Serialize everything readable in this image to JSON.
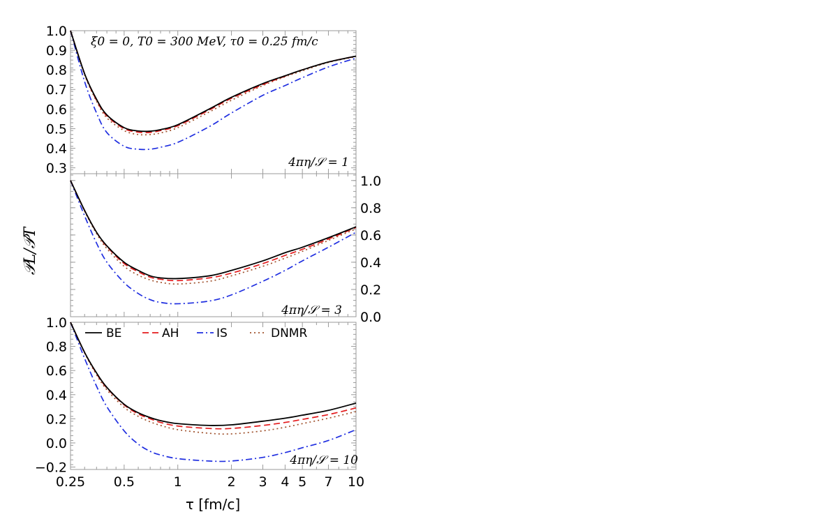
{
  "chart_data": {
    "type": "line",
    "xlabel": "τ [fm/c]",
    "ylabel": "𝒫L/𝒫T",
    "xscale": "log",
    "xlim": [
      0.25,
      10
    ],
    "x_ticks": [
      0.25,
      0.5,
      1,
      2,
      3,
      4,
      5,
      7,
      10
    ],
    "x_tick_labels": [
      "0.25",
      "0.5",
      "1",
      "2",
      "3",
      "4",
      "5",
      "7",
      "10"
    ],
    "title_annotation": "ξ0 = 0, T0 = 300 MeV, τ0 = 0.25 fm/c",
    "legend": {
      "position": "top-left of bottom panel",
      "entries": [
        {
          "name": "BE",
          "color": "#000000",
          "dash": "solid"
        },
        {
          "name": "AH",
          "color": "#e41a1c",
          "dash": "dashed"
        },
        {
          "name": "IS",
          "color": "#1f2ee0",
          "dash": "dash-dot"
        },
        {
          "name": "DNMR",
          "color": "#a0522d",
          "dash": "dotted"
        }
      ]
    },
    "panels": [
      {
        "annotation": "4πη/𝒮 = 1",
        "ylim": [
          0.27,
          1.0
        ],
        "y_ticks": [
          0.3,
          0.4,
          0.5,
          0.6,
          0.7,
          0.8,
          0.9,
          1.0
        ],
        "y_tick_labels": [
          "0.3",
          "0.4",
          "0.5",
          "0.6",
          "0.7",
          "0.8",
          "0.9",
          "1.0"
        ],
        "y_axis_side": "left",
        "series": [
          {
            "name": "BE",
            "x": [
              0.25,
              0.3,
              0.35,
              0.4,
              0.5,
              0.6,
              0.7,
              0.8,
              1,
              1.5,
              2,
              3,
              4,
              5,
              7,
              10
            ],
            "values": [
              1.0,
              0.78,
              0.65,
              0.57,
              0.505,
              0.488,
              0.487,
              0.495,
              0.52,
              0.6,
              0.66,
              0.73,
              0.77,
              0.8,
              0.84,
              0.87
            ]
          },
          {
            "name": "AH",
            "x": [
              0.25,
              0.3,
              0.35,
              0.4,
              0.5,
              0.6,
              0.7,
              0.8,
              1,
              1.5,
              2,
              3,
              4,
              5,
              7,
              10
            ],
            "values": [
              1.0,
              0.78,
              0.645,
              0.565,
              0.5,
              0.482,
              0.481,
              0.49,
              0.515,
              0.595,
              0.655,
              0.725,
              0.768,
              0.8,
              0.84,
              0.87
            ]
          },
          {
            "name": "IS",
            "x": [
              0.25,
              0.3,
              0.35,
              0.4,
              0.5,
              0.6,
              0.7,
              0.8,
              1,
              1.5,
              2,
              3,
              4,
              5,
              7,
              10
            ],
            "values": [
              1.0,
              0.74,
              0.58,
              0.48,
              0.41,
              0.395,
              0.395,
              0.405,
              0.43,
              0.51,
              0.58,
              0.67,
              0.72,
              0.76,
              0.815,
              0.86
            ]
          },
          {
            "name": "DNMR",
            "x": [
              0.25,
              0.3,
              0.35,
              0.4,
              0.5,
              0.6,
              0.7,
              0.8,
              1,
              1.5,
              2,
              3,
              4,
              5,
              7,
              10
            ],
            "values": [
              1.0,
              0.775,
              0.64,
              0.555,
              0.49,
              0.47,
              0.47,
              0.478,
              0.505,
              0.585,
              0.645,
              0.72,
              0.765,
              0.795,
              0.838,
              0.868
            ]
          }
        ]
      },
      {
        "annotation": "4πη/𝒮 = 3",
        "ylim": [
          0.0,
          1.05
        ],
        "y_ticks": [
          0.0,
          0.2,
          0.4,
          0.6,
          0.8,
          1.0
        ],
        "y_tick_labels": [
          "0.0",
          "0.2",
          "0.4",
          "0.6",
          "0.8",
          "1.0"
        ],
        "y_axis_side": "right",
        "series": [
          {
            "name": "BE",
            "x": [
              0.25,
              0.3,
              0.35,
              0.4,
              0.5,
              0.6,
              0.7,
              0.8,
              1,
              1.5,
              2,
              3,
              4,
              5,
              7,
              10
            ],
            "values": [
              1.0,
              0.78,
              0.62,
              0.52,
              0.4,
              0.34,
              0.3,
              0.285,
              0.28,
              0.3,
              0.34,
              0.41,
              0.47,
              0.51,
              0.58,
              0.66
            ]
          },
          {
            "name": "AH",
            "x": [
              0.25,
              0.3,
              0.35,
              0.4,
              0.5,
              0.6,
              0.7,
              0.8,
              1,
              1.5,
              2,
              3,
              4,
              5,
              7,
              10
            ],
            "values": [
              1.0,
              0.78,
              0.62,
              0.515,
              0.39,
              0.33,
              0.29,
              0.275,
              0.265,
              0.285,
              0.32,
              0.39,
              0.45,
              0.495,
              0.57,
              0.655
            ]
          },
          {
            "name": "IS",
            "x": [
              0.25,
              0.3,
              0.35,
              0.4,
              0.5,
              0.6,
              0.7,
              0.8,
              1,
              1.5,
              2,
              3,
              4,
              5,
              7,
              10
            ],
            "values": [
              1.0,
              0.74,
              0.54,
              0.4,
              0.25,
              0.17,
              0.125,
              0.105,
              0.095,
              0.115,
              0.16,
              0.26,
              0.34,
              0.41,
              0.51,
              0.62
            ]
          },
          {
            "name": "DNMR",
            "x": [
              0.25,
              0.3,
              0.35,
              0.4,
              0.5,
              0.6,
              0.7,
              0.8,
              1,
              1.5,
              2,
              3,
              4,
              5,
              7,
              10
            ],
            "values": [
              1.0,
              0.775,
              0.61,
              0.5,
              0.37,
              0.305,
              0.27,
              0.252,
              0.24,
              0.26,
              0.3,
              0.37,
              0.43,
              0.48,
              0.56,
              0.645
            ]
          }
        ]
      },
      {
        "annotation": "4πη/𝒮 = 10",
        "ylim": [
          -0.22,
          1.0
        ],
        "y_ticks": [
          -0.2,
          0.0,
          0.2,
          0.4,
          0.6,
          0.8,
          1.0
        ],
        "y_tick_labels": [
          "−0.2",
          "0.0",
          "0.2",
          "0.4",
          "0.6",
          "0.8",
          "1.0"
        ],
        "y_axis_side": "left",
        "series": [
          {
            "name": "BE",
            "x": [
              0.25,
              0.3,
              0.35,
              0.4,
              0.5,
              0.6,
              0.7,
              0.8,
              1,
              1.5,
              2,
              3,
              4,
              5,
              7,
              10
            ],
            "values": [
              1.0,
              0.75,
              0.58,
              0.46,
              0.32,
              0.25,
              0.21,
              0.185,
              0.16,
              0.145,
              0.15,
              0.18,
              0.205,
              0.23,
              0.27,
              0.33
            ]
          },
          {
            "name": "AH",
            "x": [
              0.25,
              0.3,
              0.35,
              0.4,
              0.5,
              0.6,
              0.7,
              0.8,
              1,
              1.5,
              2,
              3,
              4,
              5,
              7,
              10
            ],
            "values": [
              1.0,
              0.75,
              0.575,
              0.455,
              0.315,
              0.24,
              0.2,
              0.17,
              0.14,
              0.12,
              0.12,
              0.145,
              0.17,
              0.195,
              0.235,
              0.29
            ]
          },
          {
            "name": "IS",
            "x": [
              0.25,
              0.3,
              0.35,
              0.4,
              0.5,
              0.6,
              0.7,
              0.8,
              1,
              1.5,
              2,
              3,
              4,
              5,
              7,
              10
            ],
            "values": [
              1.0,
              0.7,
              0.47,
              0.3,
              0.1,
              -0.01,
              -0.07,
              -0.1,
              -0.13,
              -0.15,
              -0.15,
              -0.12,
              -0.08,
              -0.04,
              0.02,
              0.11
            ]
          },
          {
            "name": "DNMR",
            "x": [
              0.25,
              0.3,
              0.35,
              0.4,
              0.5,
              0.6,
              0.7,
              0.8,
              1,
              1.5,
              2,
              3,
              4,
              5,
              7,
              10
            ],
            "values": [
              1.0,
              0.745,
              0.565,
              0.44,
              0.295,
              0.22,
              0.175,
              0.145,
              0.11,
              0.08,
              0.075,
              0.1,
              0.13,
              0.16,
              0.205,
              0.26
            ]
          }
        ]
      }
    ]
  }
}
